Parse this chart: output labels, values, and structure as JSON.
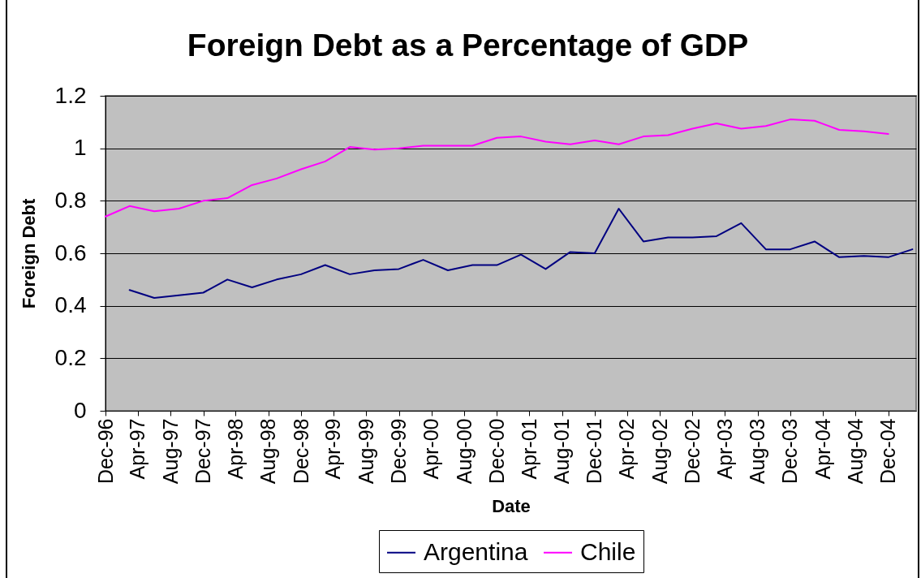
{
  "chart_data": {
    "type": "line",
    "title": "Foreign Debt as a Percentage of GDP",
    "xlabel": "Date",
    "ylabel": "Foreign Debt",
    "xlim": [
      "1996-12",
      "2005-03-15"
    ],
    "xticks": [
      {
        "value": "1996-12",
        "label": "Dec-96"
      },
      {
        "value": "1997-04",
        "label": "Apr-97"
      },
      {
        "value": "1997-08",
        "label": "Aug-97"
      },
      {
        "value": "1997-12",
        "label": "Dec-97"
      },
      {
        "value": "1998-04",
        "label": "Apr-98"
      },
      {
        "value": "1998-08",
        "label": "Aug-98"
      },
      {
        "value": "1998-12",
        "label": "Dec-98"
      },
      {
        "value": "1999-04",
        "label": "Apr-99"
      },
      {
        "value": "1999-08",
        "label": "Aug-99"
      },
      {
        "value": "1999-12",
        "label": "Dec-99"
      },
      {
        "value": "2000-04",
        "label": "Apr-00"
      },
      {
        "value": "2000-08",
        "label": "Aug-00"
      },
      {
        "value": "2000-12",
        "label": "Dec-00"
      },
      {
        "value": "2001-04",
        "label": "Apr-01"
      },
      {
        "value": "2001-08",
        "label": "Aug-01"
      },
      {
        "value": "2001-12",
        "label": "Dec-01"
      },
      {
        "value": "2002-04",
        "label": "Apr-02"
      },
      {
        "value": "2002-08",
        "label": "Aug-02"
      },
      {
        "value": "2002-12",
        "label": "Dec-02"
      },
      {
        "value": "2003-04",
        "label": "Apr-03"
      },
      {
        "value": "2003-08",
        "label": "Aug-03"
      },
      {
        "value": "2003-12",
        "label": "Dec-03"
      },
      {
        "value": "2004-04",
        "label": "Apr-04"
      },
      {
        "value": "2004-08",
        "label": "Aug-04"
      },
      {
        "value": "2004-12",
        "label": "Dec-04"
      }
    ],
    "ylim": [
      0,
      1.2
    ],
    "yticks": [
      0,
      0.2,
      0.4,
      0.6,
      0.8,
      1,
      1.2
    ],
    "grid": "y",
    "legend": "bottom",
    "series": [
      {
        "name": "Argentina",
        "color": "#000080",
        "x": [
          "1997-03",
          "1997-06",
          "1997-09",
          "1997-12",
          "1998-03",
          "1998-06",
          "1998-09",
          "1998-12",
          "1999-03",
          "1999-06",
          "1999-09",
          "1999-12",
          "2000-03",
          "2000-06",
          "2000-09",
          "2000-12",
          "2001-03",
          "2001-06",
          "2001-09",
          "2001-12",
          "2002-03",
          "2002-06",
          "2002-09",
          "2002-12",
          "2003-03",
          "2003-06",
          "2003-09",
          "2003-12",
          "2004-03",
          "2004-06",
          "2004-09",
          "2004-12",
          "2005-03"
        ],
        "values": [
          0.46,
          0.43,
          0.44,
          0.45,
          0.5,
          0.47,
          0.5,
          0.52,
          0.555,
          0.52,
          0.535,
          0.54,
          0.575,
          0.535,
          0.555,
          0.555,
          0.595,
          0.54,
          0.605,
          0.6,
          0.77,
          0.645,
          0.66,
          0.66,
          0.665,
          0.715,
          0.615,
          0.615,
          0.645,
          0.585,
          0.59,
          0.585,
          0.615
        ]
      },
      {
        "name": "Chile",
        "color": "#ff00ff",
        "x": [
          "1996-12",
          "1997-03",
          "1997-06",
          "1997-09",
          "1997-12",
          "1998-03",
          "1998-06",
          "1998-09",
          "1998-12",
          "1999-03",
          "1999-06",
          "1999-09",
          "1999-12",
          "2000-03",
          "2000-06",
          "2000-09",
          "2000-12",
          "2001-03",
          "2001-06",
          "2001-09",
          "2001-12",
          "2002-03",
          "2002-06",
          "2002-09",
          "2002-12",
          "2003-03",
          "2003-06",
          "2003-09",
          "2003-12",
          "2004-03",
          "2004-06",
          "2004-09",
          "2004-12"
        ],
        "values": [
          0.74,
          0.78,
          0.76,
          0.77,
          0.8,
          0.81,
          0.86,
          0.885,
          0.92,
          0.95,
          1.005,
          0.995,
          1.0,
          1.01,
          1.01,
          1.01,
          1.04,
          1.045,
          1.025,
          1.015,
          1.03,
          1.015,
          1.045,
          1.05,
          1.075,
          1.095,
          1.075,
          1.085,
          1.11,
          1.105,
          1.07,
          1.065,
          1.055
        ]
      }
    ]
  }
}
